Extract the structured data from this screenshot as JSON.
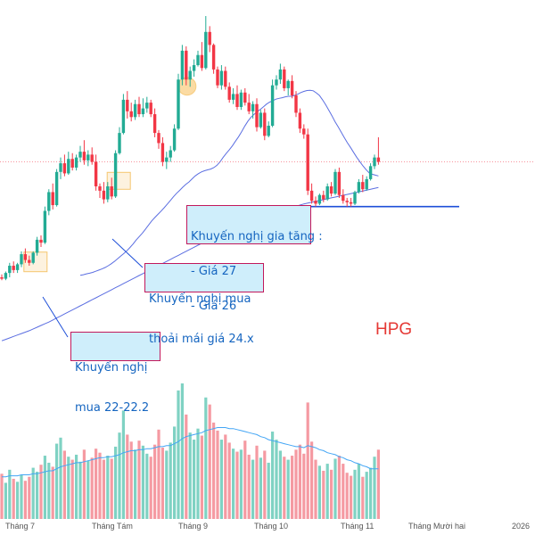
{
  "ticker": "HPG",
  "colors": {
    "up": "#22ab94",
    "down": "#f23645",
    "up_vol": "#7fd2c3",
    "down_vol": "#f59aa2",
    "ma_short": "#5b6ee1",
    "ma_long": "#5b6ee1",
    "support": "#1e4fd8",
    "price_line": "#f23645",
    "callout_bg": "#cfeefb",
    "callout_border": "#c2185b",
    "callout_text": "#1565c0",
    "highlight": "#f5c060"
  },
  "callouts": [
    {
      "id": "buy1",
      "lines": [
        "Khuyến nghị",
        "mua 22-22.2"
      ]
    },
    {
      "id": "buy2",
      "lines": [
        "Khuyến nghị mua",
        "thoải mái giá 24.x"
      ]
    },
    {
      "id": "add",
      "lines": [
        "Khuyến nghị gia tăng :",
        "- Giá 27",
        "- Giá 26"
      ]
    }
  ],
  "x_ticks": [
    "Tháng 7",
    "Tháng Tám",
    "Tháng 9",
    "Tháng 10",
    "Tháng 11",
    "Tháng Mười hai",
    "2026"
  ],
  "chart_data": {
    "type": "candlestick",
    "title": "HPG",
    "xlabel": "",
    "ylabel": "",
    "ylim": [
      18.8,
      30.6
    ],
    "grid": false,
    "candles": [
      [
        21.55,
        21.65,
        21.45,
        21.5
      ],
      [
        21.5,
        21.75,
        21.45,
        21.7
      ],
      [
        21.7,
        22.05,
        21.55,
        21.95
      ],
      [
        21.95,
        22.1,
        21.7,
        21.8
      ],
      [
        21.8,
        22.05,
        21.7,
        22.0
      ],
      [
        22.0,
        22.45,
        21.9,
        22.35
      ],
      [
        22.35,
        22.55,
        22.05,
        22.15
      ],
      [
        22.15,
        22.3,
        21.95,
        22.05
      ],
      [
        22.05,
        22.45,
        22.0,
        22.4
      ],
      [
        22.4,
        22.95,
        22.3,
        22.85
      ],
      [
        22.85,
        23.0,
        22.6,
        22.75
      ],
      [
        22.75,
        24.0,
        22.7,
        23.85
      ],
      [
        23.85,
        24.6,
        23.7,
        24.5
      ],
      [
        24.5,
        24.8,
        23.9,
        24.05
      ],
      [
        24.05,
        25.3,
        24.0,
        25.2
      ],
      [
        25.2,
        25.7,
        24.95,
        25.5
      ],
      [
        25.5,
        25.8,
        25.05,
        25.15
      ],
      [
        25.15,
        25.9,
        25.1,
        25.65
      ],
      [
        25.65,
        25.85,
        25.25,
        25.35
      ],
      [
        25.35,
        25.8,
        25.25,
        25.7
      ],
      [
        25.7,
        26.1,
        25.55,
        25.9
      ],
      [
        25.9,
        26.3,
        25.45,
        25.6
      ],
      [
        25.6,
        25.95,
        25.4,
        25.8
      ],
      [
        25.8,
        26.05,
        25.45,
        25.55
      ],
      [
        25.55,
        25.8,
        24.55,
        24.7
      ],
      [
        24.7,
        24.8,
        24.3,
        24.55
      ],
      [
        24.55,
        24.85,
        24.1,
        24.25
      ],
      [
        24.25,
        24.85,
        24.15,
        24.7
      ],
      [
        24.7,
        25.0,
        24.25,
        24.35
      ],
      [
        24.35,
        25.95,
        24.3,
        25.85
      ],
      [
        25.85,
        26.75,
        25.8,
        26.55
      ],
      [
        26.55,
        27.9,
        26.5,
        27.7
      ],
      [
        27.7,
        28.0,
        27.05,
        27.3
      ],
      [
        27.3,
        27.6,
        26.95,
        27.1
      ],
      [
        27.1,
        27.7,
        27.0,
        27.55
      ],
      [
        27.55,
        27.8,
        27.1,
        27.2
      ],
      [
        27.2,
        27.75,
        27.1,
        27.4
      ],
      [
        27.4,
        27.8,
        27.25,
        27.6
      ],
      [
        27.6,
        27.7,
        27.1,
        27.2
      ],
      [
        27.2,
        27.4,
        26.4,
        26.55
      ],
      [
        26.55,
        26.65,
        26.0,
        26.2
      ],
      [
        26.2,
        26.4,
        25.4,
        25.55
      ],
      [
        25.55,
        25.9,
        25.3,
        25.7
      ],
      [
        25.7,
        26.1,
        25.55,
        25.95
      ],
      [
        25.95,
        26.85,
        25.9,
        26.7
      ],
      [
        26.7,
        28.6,
        26.65,
        28.4
      ],
      [
        28.4,
        29.6,
        28.2,
        29.4
      ],
      [
        29.4,
        29.55,
        28.2,
        28.4
      ],
      [
        28.4,
        28.85,
        28.15,
        28.7
      ],
      [
        28.7,
        29.1,
        28.5,
        28.9
      ],
      [
        28.9,
        29.4,
        28.85,
        29.25
      ],
      [
        29.25,
        29.7,
        28.7,
        28.8
      ],
      [
        28.8,
        30.6,
        28.75,
        30.05
      ],
      [
        30.05,
        30.25,
        29.35,
        29.6
      ],
      [
        29.6,
        29.65,
        28.6,
        28.75
      ],
      [
        28.75,
        28.85,
        28.1,
        28.2
      ],
      [
        28.2,
        28.9,
        28.05,
        28.7
      ],
      [
        28.7,
        28.85,
        28.05,
        28.15
      ],
      [
        28.15,
        28.3,
        27.6,
        27.7
      ],
      [
        27.7,
        28.1,
        27.55,
        27.9
      ],
      [
        27.9,
        28.2,
        27.35,
        27.45
      ],
      [
        27.45,
        28.05,
        27.35,
        27.95
      ],
      [
        27.95,
        28.1,
        27.5,
        27.6
      ],
      [
        27.6,
        27.9,
        27.2,
        27.3
      ],
      [
        27.3,
        27.65,
        27.05,
        27.55
      ],
      [
        27.55,
        27.75,
        26.6,
        26.75
      ],
      [
        26.75,
        27.35,
        26.7,
        27.25
      ],
      [
        27.25,
        27.4,
        26.3,
        26.45
      ],
      [
        26.45,
        26.95,
        26.4,
        26.8
      ],
      [
        26.8,
        28.4,
        26.75,
        28.2
      ],
      [
        28.2,
        28.55,
        28.05,
        28.4
      ],
      [
        28.4,
        28.95,
        28.25,
        28.75
      ],
      [
        28.75,
        28.85,
        28.0,
        28.1
      ],
      [
        28.1,
        28.4,
        27.85,
        28.35
      ],
      [
        28.35,
        28.55,
        27.75,
        27.85
      ],
      [
        27.85,
        28.0,
        27.1,
        27.25
      ],
      [
        27.25,
        27.4,
        26.55,
        26.7
      ],
      [
        26.7,
        26.85,
        26.35,
        26.5
      ],
      [
        26.5,
        26.7,
        24.4,
        24.55
      ],
      [
        24.55,
        24.8,
        24.1,
        24.2
      ],
      [
        24.2,
        24.35,
        24.0,
        24.1
      ],
      [
        24.1,
        24.45,
        24.05,
        24.4
      ],
      [
        24.4,
        24.55,
        24.15,
        24.25
      ],
      [
        24.25,
        24.8,
        24.2,
        24.7
      ],
      [
        24.7,
        24.85,
        24.35,
        24.45
      ],
      [
        24.45,
        25.3,
        24.4,
        25.2
      ],
      [
        25.2,
        25.35,
        24.3,
        24.4
      ],
      [
        24.4,
        24.6,
        24.1,
        24.2
      ],
      [
        24.2,
        24.3,
        24.0,
        24.15
      ],
      [
        24.15,
        24.3,
        24.0,
        24.1
      ],
      [
        24.1,
        24.55,
        24.05,
        24.5
      ],
      [
        24.5,
        24.95,
        24.45,
        24.85
      ],
      [
        24.85,
        25.1,
        24.5,
        24.6
      ],
      [
        24.6,
        25.05,
        24.55,
        24.95
      ],
      [
        24.95,
        25.5,
        24.9,
        25.4
      ],
      [
        25.4,
        25.8,
        25.3,
        25.7
      ],
      [
        25.7,
        26.4,
        25.45,
        25.55
      ]
    ],
    "volume": [
      4.5,
      3.6,
      4.9,
      4.0,
      3.7,
      4.4,
      3.8,
      4.2,
      5.1,
      4.7,
      5.4,
      6.3,
      5.6,
      5.2,
      7.5,
      8.1,
      6.8,
      6.2,
      5.9,
      6.4,
      5.7,
      6.9,
      5.8,
      6.1,
      7.0,
      6.6,
      5.9,
      6.3,
      6.0,
      7.2,
      8.6,
      10.8,
      8.4,
      7.7,
      6.9,
      7.8,
      7.3,
      6.5,
      6.2,
      7.4,
      8.9,
      7.1,
      6.8,
      7.6,
      9.2,
      12.8,
      13.5,
      10.4,
      8.6,
      7.9,
      9.0,
      8.3,
      12.1,
      11.4,
      9.6,
      8.8,
      7.9,
      8.4,
      7.6,
      7.0,
      6.7,
      6.9,
      7.8,
      6.4,
      5.9,
      7.3,
      6.1,
      6.8,
      5.6,
      8.7,
      7.9,
      6.8,
      6.2,
      5.9,
      6.3,
      6.9,
      7.4,
      6.5,
      11.6,
      7.7,
      5.9,
      5.3,
      4.8,
      5.5,
      4.9,
      6.0,
      6.3,
      5.5,
      4.6,
      4.3,
      4.9,
      5.5,
      4.2,
      4.7,
      5.1,
      6.2,
      6.9
    ],
    "moving_average_20": [
      21.62,
      21.64,
      21.67,
      21.69,
      21.72,
      21.76,
      21.8,
      21.84,
      21.89,
      21.95,
      22.02,
      22.1,
      22.19,
      22.28,
      22.37,
      22.47,
      22.58,
      22.7,
      22.84,
      22.96,
      23.08,
      23.22,
      23.36,
      23.5,
      23.62,
      23.73,
      23.84,
      23.96,
      24.08,
      24.21,
      24.34,
      24.46,
      24.56,
      24.67,
      24.77,
      24.85,
      24.96,
      25.06,
      25.14,
      25.2,
      25.24,
      25.27,
      25.3,
      25.35,
      25.43,
      25.55,
      25.7,
      25.84,
      25.97,
      26.11,
      26.27,
      26.42,
      26.6,
      26.79,
      26.96,
      27.1,
      27.2,
      27.29,
      27.37,
      27.46,
      27.55,
      27.62,
      27.67,
      27.72,
      27.75,
      27.77,
      27.8,
      27.82,
      27.82,
      27.85,
      27.89,
      27.95,
      27.99,
      28.02,
      28.03,
      28.01,
      27.94,
      27.85,
      27.7,
      27.53,
      27.34,
      27.15,
      26.95,
      26.77,
      26.58,
      26.39,
      26.21,
      26.05,
      25.88,
      25.71,
      25.56,
      25.41,
      25.28,
      25.17,
      25.12,
      25.09,
      25.06
    ],
    "moving_average_100": [
      19.35,
      19.4,
      19.45,
      19.5,
      19.55,
      19.6,
      19.65,
      19.7,
      19.76,
      19.82,
      19.88,
      19.94,
      20.0,
      20.07,
      20.14,
      20.21,
      20.28,
      20.35,
      20.42,
      20.49,
      20.56,
      20.63,
      20.7,
      20.77,
      20.84,
      20.91,
      20.98,
      21.05,
      21.12,
      21.19,
      21.26,
      21.33,
      21.4,
      21.47,
      21.54,
      21.61,
      21.68,
      21.75,
      21.82,
      21.89,
      21.96,
      22.03,
      22.1,
      22.17,
      22.24,
      22.31,
      22.38,
      22.45,
      22.52,
      22.59,
      22.66,
      22.73,
      22.8,
      22.87,
      22.94,
      23.01,
      23.08,
      23.14,
      23.2,
      23.26,
      23.32,
      23.38,
      23.43,
      23.48,
      23.53,
      23.58,
      23.63,
      23.68,
      23.73,
      23.77,
      23.81,
      23.85,
      23.89,
      23.93,
      23.97,
      24.01,
      24.05,
      24.09,
      24.12,
      24.15,
      24.18,
      24.21,
      24.24,
      24.27,
      24.3,
      24.33,
      24.36,
      24.39,
      24.42,
      24.45,
      24.48,
      24.51,
      24.54,
      24.57,
      24.6,
      24.63,
      24.66
    ],
    "volume_moving_average": [
      4.2,
      4.2,
      4.3,
      4.3,
      4.3,
      4.4,
      4.4,
      4.4,
      4.5,
      4.5,
      4.6,
      4.7,
      4.8,
      4.8,
      5.0,
      5.2,
      5.3,
      5.4,
      5.5,
      5.6,
      5.6,
      5.7,
      5.8,
      5.9,
      6.0,
      6.1,
      6.1,
      6.2,
      6.2,
      6.3,
      6.4,
      6.6,
      6.7,
      6.8,
      6.8,
      6.9,
      6.9,
      7.0,
      7.0,
      7.1,
      7.2,
      7.2,
      7.3,
      7.3,
      7.5,
      7.7,
      8.0,
      8.2,
      8.3,
      8.4,
      8.5,
      8.6,
      8.8,
      8.9,
      9.0,
      9.1,
      9.1,
      9.1,
      9.0,
      9.0,
      8.9,
      8.8,
      8.7,
      8.6,
      8.5,
      8.4,
      8.2,
      8.1,
      7.9,
      7.8,
      7.7,
      7.6,
      7.5,
      7.4,
      7.3,
      7.2,
      7.2,
      7.1,
      7.3,
      7.2,
      7.1,
      6.9,
      6.8,
      6.6,
      6.5,
      6.4,
      6.2,
      6.1,
      5.9,
      5.8,
      5.6,
      5.5,
      5.3,
      5.2,
      5.0,
      5.0,
      5.0
    ],
    "support_level": 24.0,
    "current_price_line": 25.55,
    "highlights": [
      {
        "candle": 7
      },
      {
        "candle": 28
      },
      {
        "candle": 47
      }
    ],
    "x_ticks": [
      {
        "label": "Tháng 7",
        "index": 5
      },
      {
        "label": "Tháng Tám",
        "index": 27
      },
      {
        "label": "Tháng 9",
        "index": 50
      },
      {
        "label": "Tháng 10",
        "index": 72
      },
      {
        "label": "Tháng 11",
        "index": 94
      },
      {
        "label": "Tháng Mười hai",
        "index": 117
      },
      {
        "label": "2026",
        "index": 139
      }
    ],
    "annotations": [
      "Khuyến nghị mua 22-22.2",
      "Khuyến nghị mua thoải mái giá 24.x",
      "Khuyến nghị gia tăng : - Giá 27 - Giá 26"
    ]
  }
}
